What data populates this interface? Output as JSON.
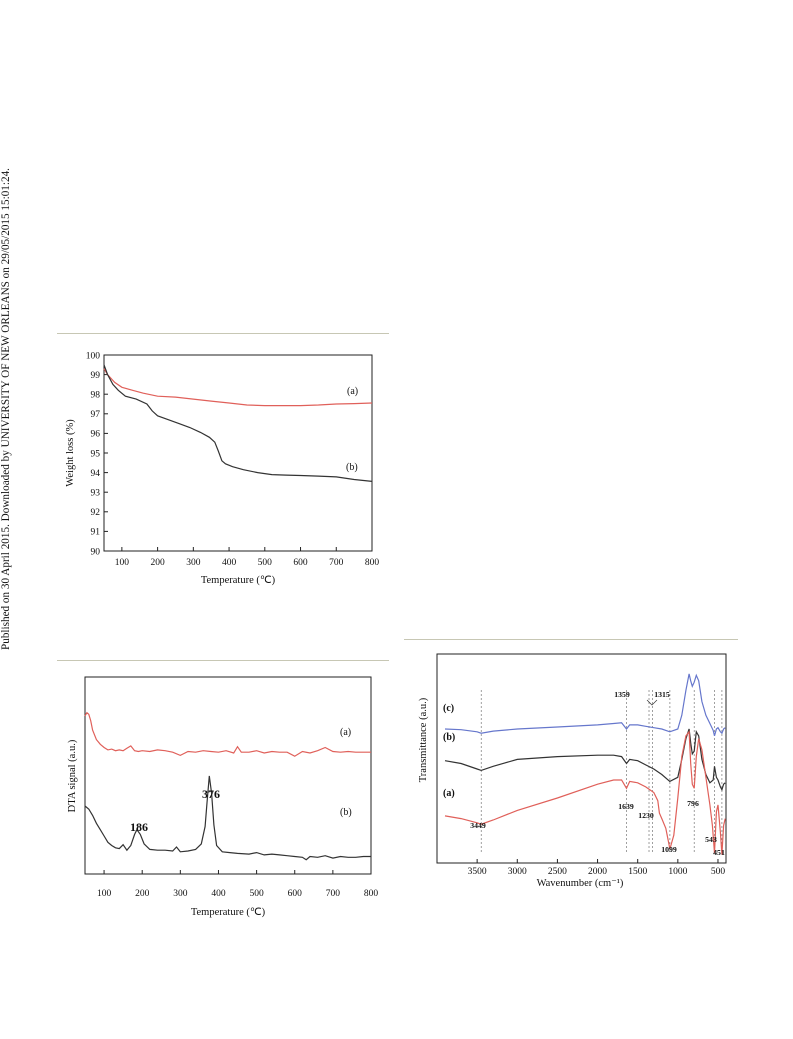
{
  "side_text": "Published on 30 April 2015. Downloaded by UNIVERSITY OF NEW ORLEANS on 29/05/2015 15:01:24.",
  "colors": {
    "red": "#e0605a",
    "black": "#333333",
    "blue": "#6677cc",
    "rule": "#c7c7b4"
  },
  "chart_data": [
    {
      "type": "line",
      "xlabel": "Temperature (℃)",
      "ylabel": "Weight loss (%)",
      "xlim": [
        50,
        800
      ],
      "ylim": [
        90,
        100
      ],
      "xticks": [
        100,
        200,
        300,
        400,
        500,
        600,
        700,
        800
      ],
      "yticks": [
        90,
        91,
        92,
        93,
        94,
        95,
        96,
        97,
        98,
        99,
        100
      ],
      "grid": false,
      "series": [
        {
          "name": "(a)",
          "color": "#e0605a",
          "x": [
            50,
            60,
            80,
            100,
            130,
            160,
            200,
            250,
            300,
            350,
            400,
            450,
            500,
            550,
            600,
            650,
            700,
            750,
            800
          ],
          "y": [
            99.3,
            99.0,
            98.6,
            98.35,
            98.2,
            98.05,
            97.9,
            97.85,
            97.75,
            97.65,
            97.55,
            97.45,
            97.42,
            97.42,
            97.42,
            97.45,
            97.5,
            97.52,
            97.55
          ]
        },
        {
          "name": "(b)",
          "color": "#333333",
          "x": [
            50,
            60,
            75,
            90,
            110,
            140,
            170,
            185,
            200,
            230,
            260,
            290,
            320,
            345,
            360,
            370,
            380,
            390,
            410,
            440,
            480,
            520,
            560,
            600,
            650,
            700,
            750,
            800
          ],
          "y": [
            99.5,
            99.0,
            98.5,
            98.2,
            97.9,
            97.75,
            97.5,
            97.15,
            96.9,
            96.7,
            96.5,
            96.3,
            96.05,
            95.8,
            95.55,
            95.1,
            94.6,
            94.45,
            94.3,
            94.15,
            94.0,
            93.9,
            93.87,
            93.85,
            93.82,
            93.78,
            93.65,
            93.55
          ]
        }
      ]
    },
    {
      "type": "line",
      "xlabel": "Temperature (℃)",
      "ylabel": "DTA signal (a.u.)",
      "xlim": [
        50,
        800
      ],
      "xticks": [
        100,
        200,
        300,
        400,
        500,
        600,
        700,
        800
      ],
      "yticks": [],
      "grid": false,
      "annotations": [
        {
          "text": "186",
          "x": 186
        },
        {
          "text": "376",
          "x": 376
        }
      ],
      "series": [
        {
          "name": "(a)",
          "color": "#e0605a",
          "x": [
            50,
            55,
            60,
            65,
            70,
            80,
            90,
            100,
            110,
            120,
            130,
            140,
            150,
            160,
            170,
            180,
            190,
            200,
            220,
            240,
            260,
            280,
            300,
            320,
            340,
            360,
            380,
            400,
            420,
            440,
            450,
            460,
            480,
            500,
            520,
            540,
            560,
            580,
            600,
            620,
            640,
            660,
            680,
            700,
            720,
            740,
            760,
            780,
            800
          ],
          "y": [
            9.5,
            9.7,
            9.6,
            9.2,
            8.6,
            8.0,
            7.7,
            7.5,
            7.35,
            7.4,
            7.3,
            7.35,
            7.3,
            7.45,
            7.6,
            7.3,
            7.25,
            7.3,
            7.25,
            7.35,
            7.3,
            7.2,
            7.0,
            7.25,
            7.2,
            7.3,
            7.25,
            7.2,
            7.3,
            7.15,
            7.55,
            7.2,
            7.2,
            7.3,
            7.15,
            7.25,
            7.2,
            7.2,
            6.95,
            7.25,
            7.15,
            7.3,
            7.5,
            7.25,
            7.2,
            7.25,
            7.2,
            7.2,
            7.2
          ]
        },
        {
          "name": "(b)",
          "color": "#333333",
          "x": [
            50,
            60,
            70,
            80,
            90,
            100,
            110,
            120,
            130,
            140,
            150,
            160,
            170,
            180,
            186,
            195,
            205,
            220,
            240,
            260,
            280,
            290,
            300,
            320,
            340,
            355,
            365,
            370,
            376,
            382,
            388,
            395,
            410,
            430,
            450,
            480,
            500,
            520,
            540,
            560,
            580,
            600,
            620,
            630,
            640,
            660,
            680,
            700,
            720,
            740,
            760,
            780,
            800
          ],
          "y": [
            3.8,
            3.6,
            3.2,
            2.7,
            2.3,
            1.9,
            1.5,
            1.3,
            1.15,
            1.1,
            1.35,
            1.0,
            1.3,
            2.0,
            2.3,
            2.0,
            1.4,
            1.05,
            1.0,
            1.0,
            0.95,
            1.2,
            0.9,
            0.95,
            1.05,
            1.4,
            2.5,
            4.0,
            5.7,
            4.6,
            2.6,
            1.3,
            0.9,
            0.85,
            0.8,
            0.75,
            0.85,
            0.7,
            0.75,
            0.7,
            0.65,
            0.6,
            0.55,
            0.4,
            0.6,
            0.55,
            0.65,
            0.5,
            0.6,
            0.55,
            0.55,
            0.6,
            0.6
          ]
        }
      ]
    },
    {
      "type": "line",
      "xlabel": "Wavenumber (cm⁻¹)",
      "ylabel": "Transmittance (a.u.)",
      "xlim": [
        4000,
        400
      ],
      "xticks": [
        3500,
        3000,
        2500,
        2000,
        1500,
        1000,
        500
      ],
      "yticks": [],
      "grid": false,
      "annotations": [
        {
          "text": "3449",
          "x": 3449
        },
        {
          "text": "1639",
          "x": 1639
        },
        {
          "text": "1359",
          "x": 1359
        },
        {
          "text": "1315",
          "x": 1315
        },
        {
          "text": "1230",
          "x": 1230
        },
        {
          "text": "1099",
          "x": 1099
        },
        {
          "text": "796",
          "x": 796
        },
        {
          "text": "543",
          "x": 543
        },
        {
          "text": "451",
          "x": 451
        }
      ],
      "series": [
        {
          "name": "(c)",
          "color": "#6677cc",
          "x": [
            3900,
            3700,
            3500,
            3449,
            3300,
            3000,
            2500,
            2000,
            1800,
            1700,
            1639,
            1600,
            1500,
            1400,
            1300,
            1200,
            1100,
            1000,
            950,
            900,
            860,
            840,
            820,
            796,
            770,
            740,
            700,
            650,
            600,
            560,
            543,
            520,
            500,
            470,
            451,
            430,
            410
          ],
          "y": [
            9.5,
            9.45,
            9.3,
            9.2,
            9.35,
            9.5,
            9.65,
            9.8,
            9.9,
            9.95,
            9.5,
            9.8,
            9.8,
            9.7,
            9.6,
            9.5,
            9.3,
            9.5,
            10.5,
            12.3,
            13.5,
            13.0,
            12.6,
            12.9,
            13.4,
            13.0,
            11.5,
            10.5,
            9.9,
            9.4,
            9.0,
            9.5,
            9.6,
            9.3,
            9.2,
            9.5,
            9.6
          ]
        },
        {
          "name": "(b)",
          "color": "#333333",
          "x": [
            3900,
            3700,
            3500,
            3449,
            3300,
            3000,
            2500,
            2000,
            1800,
            1700,
            1639,
            1600,
            1500,
            1400,
            1300,
            1200,
            1100,
            1000,
            950,
            900,
            860,
            840,
            820,
            796,
            770,
            740,
            700,
            650,
            600,
            560,
            543,
            520,
            500,
            470,
            451,
            430,
            410
          ],
          "y": [
            7.2,
            7.0,
            6.6,
            6.5,
            6.8,
            7.3,
            7.5,
            7.6,
            7.6,
            7.5,
            7.0,
            7.3,
            7.2,
            6.9,
            6.6,
            6.2,
            5.7,
            6.0,
            7.3,
            8.8,
            9.5,
            8.5,
            7.7,
            7.9,
            9.3,
            9.0,
            7.3,
            6.2,
            5.6,
            5.8,
            6.8,
            6.0,
            5.8,
            5.3,
            5.1,
            5.5,
            5.6
          ]
        },
        {
          "name": "(a)",
          "color": "#e0605a",
          "x": [
            3900,
            3700,
            3500,
            3449,
            3300,
            3000,
            2500,
            2000,
            1800,
            1700,
            1639,
            1600,
            1500,
            1400,
            1300,
            1250,
            1230,
            1200,
            1150,
            1099,
            1050,
            1000,
            950,
            900,
            860,
            840,
            820,
            796,
            770,
            740,
            700,
            650,
            600,
            570,
            543,
            520,
            500,
            470,
            451,
            430,
            410
          ],
          "y": [
            3.2,
            3.0,
            2.7,
            2.6,
            2.9,
            3.6,
            4.5,
            5.5,
            5.8,
            5.8,
            5.2,
            5.7,
            5.6,
            5.3,
            4.9,
            4.3,
            3.4,
            3.0,
            2.3,
            0.8,
            1.8,
            4.5,
            7.5,
            9.0,
            9.3,
            7.0,
            5.5,
            5.2,
            7.5,
            8.8,
            8.0,
            6.0,
            4.0,
            2.5,
            0.5,
            3.5,
            4.0,
            2.0,
            0.4,
            2.5,
            3.0
          ]
        }
      ]
    }
  ]
}
